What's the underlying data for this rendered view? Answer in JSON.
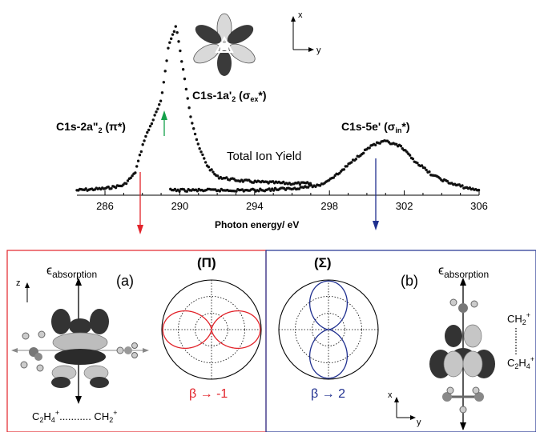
{
  "top_plot": {
    "xlabel": "Photon energy/ eV",
    "curve_label": "Total Ion Yield",
    "x_ticks": [
      "286",
      "290",
      "294",
      "298",
      "302",
      "306"
    ],
    "peak_pi": {
      "text": "C1s-2a\"",
      "sub": "2",
      "tail": " (π*)"
    },
    "peak_ex": {
      "text": "C1s-1a'",
      "sub": "2",
      "tail": " (σ",
      "sub2": "ex",
      "tail2": "*)"
    },
    "peak_in": {
      "text": "C1s-5e'",
      "tail": " (σ",
      "sub2": "in",
      "tail2": "*)"
    },
    "axis_x_label": "x",
    "axis_y_label": "y",
    "colors": {
      "pi_arrow": "#e2232a",
      "ex_arrow": "#14a14a",
      "in_arrow": "#1f2f8f"
    }
  },
  "chart_data": {
    "type": "line",
    "xlabel": "Photon energy/ eV",
    "xlim": [
      284.5,
      306
    ],
    "x_ticks": [
      286,
      290,
      294,
      298,
      302,
      306
    ],
    "series": [
      {
        "name": "Total Ion Yield",
        "x": [
          284.5,
          286,
          287,
          287.6,
          288.1,
          288.5,
          289.0,
          289.4,
          289.8,
          290.2,
          290.6,
          291.0,
          291.5,
          292,
          293,
          294,
          296,
          297
        ],
        "y": [
          0.02,
          0.03,
          0.05,
          0.12,
          0.32,
          0.42,
          0.55,
          0.88,
          1.0,
          0.72,
          0.45,
          0.28,
          0.16,
          0.1,
          0.08,
          0.07,
          0.06,
          0.06
        ]
      },
      {
        "name": "",
        "x": [
          289.5,
          291,
          294,
          296,
          297.5,
          298.5,
          299.5,
          300.3,
          301.0,
          301.8,
          302.5,
          303.5,
          304.5,
          305.5,
          306
        ],
        "y": [
          0.02,
          0.02,
          0.02,
          0.03,
          0.05,
          0.12,
          0.22,
          0.29,
          0.31,
          0.28,
          0.2,
          0.11,
          0.06,
          0.03,
          0.02
        ]
      }
    ]
  },
  "panel_a": {
    "label": "(a)",
    "eps": "ϵ",
    "eps_sub": "absorption",
    "z": "z",
    "bottom": {
      "a": "C",
      "a_sub": "2",
      "b": "H",
      "b_sub": "4",
      "sup": "+",
      "dots": "...........",
      "c": " CH",
      "c_sub": "2",
      "sup2": "+"
    },
    "color": "#e2232a"
  },
  "panel_b": {
    "label": "(b)",
    "eps": "ϵ",
    "eps_sub": "absorption",
    "ch2": {
      "a": "CH",
      "sub": "2",
      "sup": "+"
    },
    "c2h4": {
      "a": "C",
      "a_sub": "2",
      "b": "H",
      "b_sub": "4",
      "sup": "+"
    },
    "x": "x",
    "y": "y",
    "color": "#1f2f8f"
  },
  "polar_pi": {
    "title": "(Π)",
    "beta": "β → -1",
    "color": "#e2232a"
  },
  "polar_sigma": {
    "title": "(Σ)",
    "beta": "β → 2",
    "color": "#1f2f8f"
  },
  "icons": [
    "orbital-1a2-icon",
    "molecule-a-icon",
    "molecule-b-icon"
  ]
}
